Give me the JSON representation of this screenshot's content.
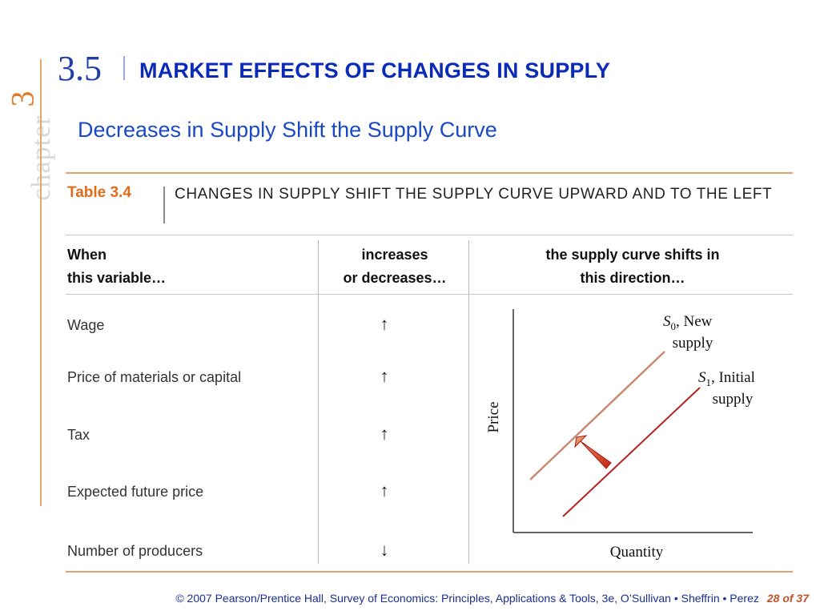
{
  "side": {
    "chapter_word": "chapter",
    "chapter_number": "3"
  },
  "header": {
    "section_number": "3.5",
    "section_title": "MARKET EFFECTS OF CHANGES IN SUPPLY"
  },
  "subtitle": "Decreases in Supply Shift the Supply Curve",
  "table": {
    "label": "Table 3.4",
    "title": "CHANGES IN SUPPLY SHIFT THE SUPPLY CURVE UPWARD AND TO THE LEFT",
    "headers": {
      "col1_line1": "When",
      "col1_line2": "this variable…",
      "col2_line1": "increases",
      "col2_line2": "or decreases…",
      "col3_line1": "the supply curve shifts in",
      "col3_line2": "this direction…"
    },
    "rows": [
      {
        "variable": "Wage",
        "change": "↑"
      },
      {
        "variable": "Price of materials or capital",
        "change": "↑"
      },
      {
        "variable": "Tax",
        "change": "↑"
      },
      {
        "variable": "Expected future price",
        "change": "↑"
      },
      {
        "variable": "Number of producers",
        "change": "↓"
      }
    ]
  },
  "graph": {
    "y_label": "Price",
    "x_label": "Quantity",
    "new_supply_symbol": "S",
    "new_supply_sub": "0",
    "new_supply_text1": ", New",
    "new_supply_text2": "supply",
    "initial_supply_symbol": "S",
    "initial_supply_sub": "1",
    "initial_supply_text1": ", Initial",
    "initial_supply_text2": "supply",
    "colors": {
      "new_supply": "#c98a73",
      "initial_supply": "#b52020",
      "shift_arrow": "#e33a1a"
    }
  },
  "footer": {
    "credit": "© 2007 Pearson/Prentice Hall, Survey of Economics: Principles, Applications & Tools, 3e, O’Sullivan • Sheffrin • Perez",
    "page": "28 of 37"
  }
}
